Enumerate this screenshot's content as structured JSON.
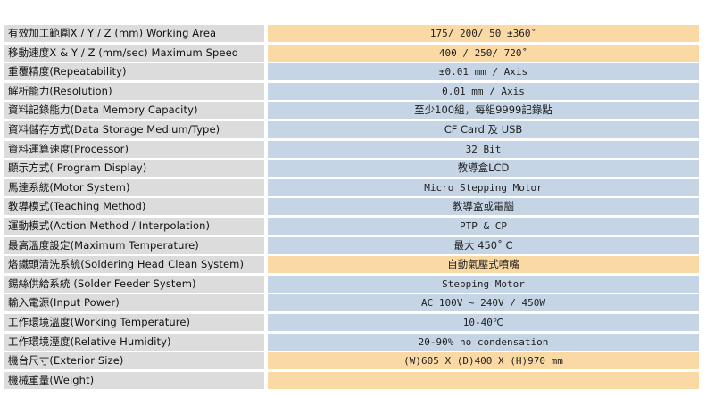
{
  "rows": [
    {
      "label": "有效加工範圍X / Y / Z (mm) Working Area",
      "value": "175/ 200/ 50 ±360˚",
      "color": "orange"
    },
    {
      "label": "移動速度X & Y / Z (mm/sec) Maximum Speed",
      "value": "400 / 250/ 720˚",
      "color": "orange"
    },
    {
      "label": "重覆精度(Repeatability)",
      "value": "±0.01 mm / Axis",
      "color": "blue"
    },
    {
      "label": "解析能力(Resolution)",
      "value": "0.01 mm / Axis",
      "color": "blue"
    },
    {
      "label": "資料記錄能力(Data Memory Capacity)",
      "value": "至少100組，每組9999記錄點",
      "color": "blue"
    },
    {
      "label": "資料儲存方式(Data Storage Medium/Type)",
      "value": "CF Card 及 USB",
      "color": "blue"
    },
    {
      "label": "資料運算速度(Processor)",
      "value": "32 Bit",
      "color": "blue"
    },
    {
      "label": "顯示方式( Program Display)",
      "value": "教導盒LCD",
      "color": "blue"
    },
    {
      "label": "馬達系統(Motor System)",
      "value": "Micro Stepping Motor",
      "color": "blue"
    },
    {
      "label": "教導模式(Teaching Method)",
      "value": "教導盒或電腦",
      "color": "blue"
    },
    {
      "label": "運動模式(Action Method / Interpolation)",
      "value": "PTP & CP",
      "color": "blue"
    },
    {
      "label": "最高溫度設定(Maximum Temperature)",
      "value": "最大 450˚ C",
      "color": "blue"
    },
    {
      "label": "烙鐵頭清洗系統(Soldering Head Clean System)",
      "value": "自動氣壓式噴嘴",
      "color": "orange"
    },
    {
      "label": "錫絲供給系統 (Solder Feeder System)",
      "value": "Stepping Motor",
      "color": "blue"
    },
    {
      "label": "輸入電源(Input Power)",
      "value": "AC 100V ~ 240V / 450W",
      "color": "blue"
    },
    {
      "label": "工作環境溫度(Working Temperature)",
      "value": "10-40℃",
      "color": "blue"
    },
    {
      "label": "工作環境溼度(Relative Humidity)",
      "value": "20-90% no condensation",
      "color": "blue"
    },
    {
      "label": "機台尺寸(Exterior Size)",
      "value": "(W)605 X (D)400 X (H)970 mm",
      "color": "orange"
    },
    {
      "label": "機械重量(Weight)",
      "value": "",
      "color": "orange"
    }
  ]
}
